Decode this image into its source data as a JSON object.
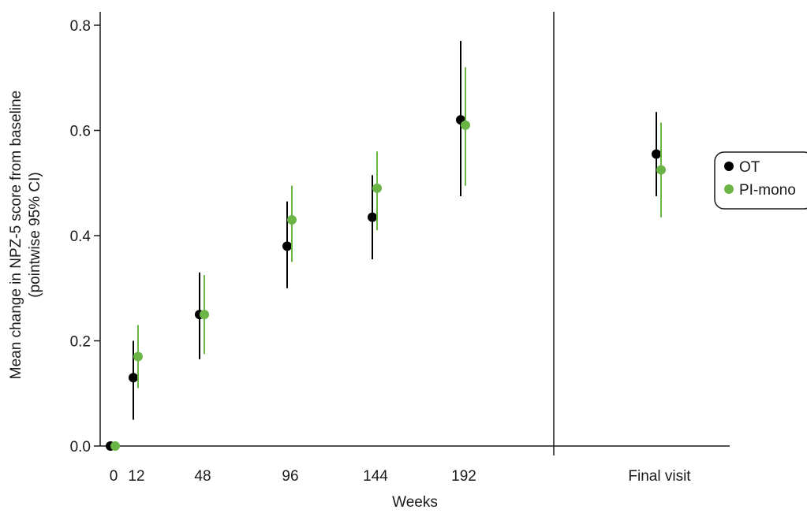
{
  "chart_data": {
    "type": "scatter",
    "subtype": "point-estimate-with-error-bars",
    "title": "",
    "xlabel": "Weeks",
    "ylabel_line1": "Mean change in NPZ-5 score from baseline",
    "ylabel_line2": "(pointwise 95% CI)",
    "ylim": [
      0,
      0.8
    ],
    "yticks": [
      0.0,
      0.2,
      0.4,
      0.6,
      0.8
    ],
    "ytick_labels": [
      "0.0",
      "0.2",
      "0.4",
      "0.6",
      "0.8"
    ],
    "categories": [
      "0",
      "12",
      "48",
      "96",
      "144",
      "192",
      "Final visit"
    ],
    "grid": false,
    "legend_position": "right",
    "series": [
      {
        "name": "OT",
        "color": "#000000",
        "values": [
          0.0,
          0.13,
          0.25,
          0.38,
          0.435,
          0.62,
          0.555
        ],
        "ci_low": [
          0.0,
          0.05,
          0.165,
          0.3,
          0.355,
          0.475,
          0.475
        ],
        "ci_high": [
          0.0,
          0.2,
          0.33,
          0.465,
          0.515,
          0.77,
          0.635
        ]
      },
      {
        "name": "PI-mono",
        "color": "#6ab545",
        "values": [
          0.0,
          0.17,
          0.25,
          0.43,
          0.49,
          0.61,
          0.525
        ],
        "ci_low": [
          0.0,
          0.11,
          0.175,
          0.35,
          0.41,
          0.495,
          0.435
        ],
        "ci_high": [
          0.0,
          0.23,
          0.325,
          0.495,
          0.56,
          0.72,
          0.615
        ]
      }
    ]
  }
}
